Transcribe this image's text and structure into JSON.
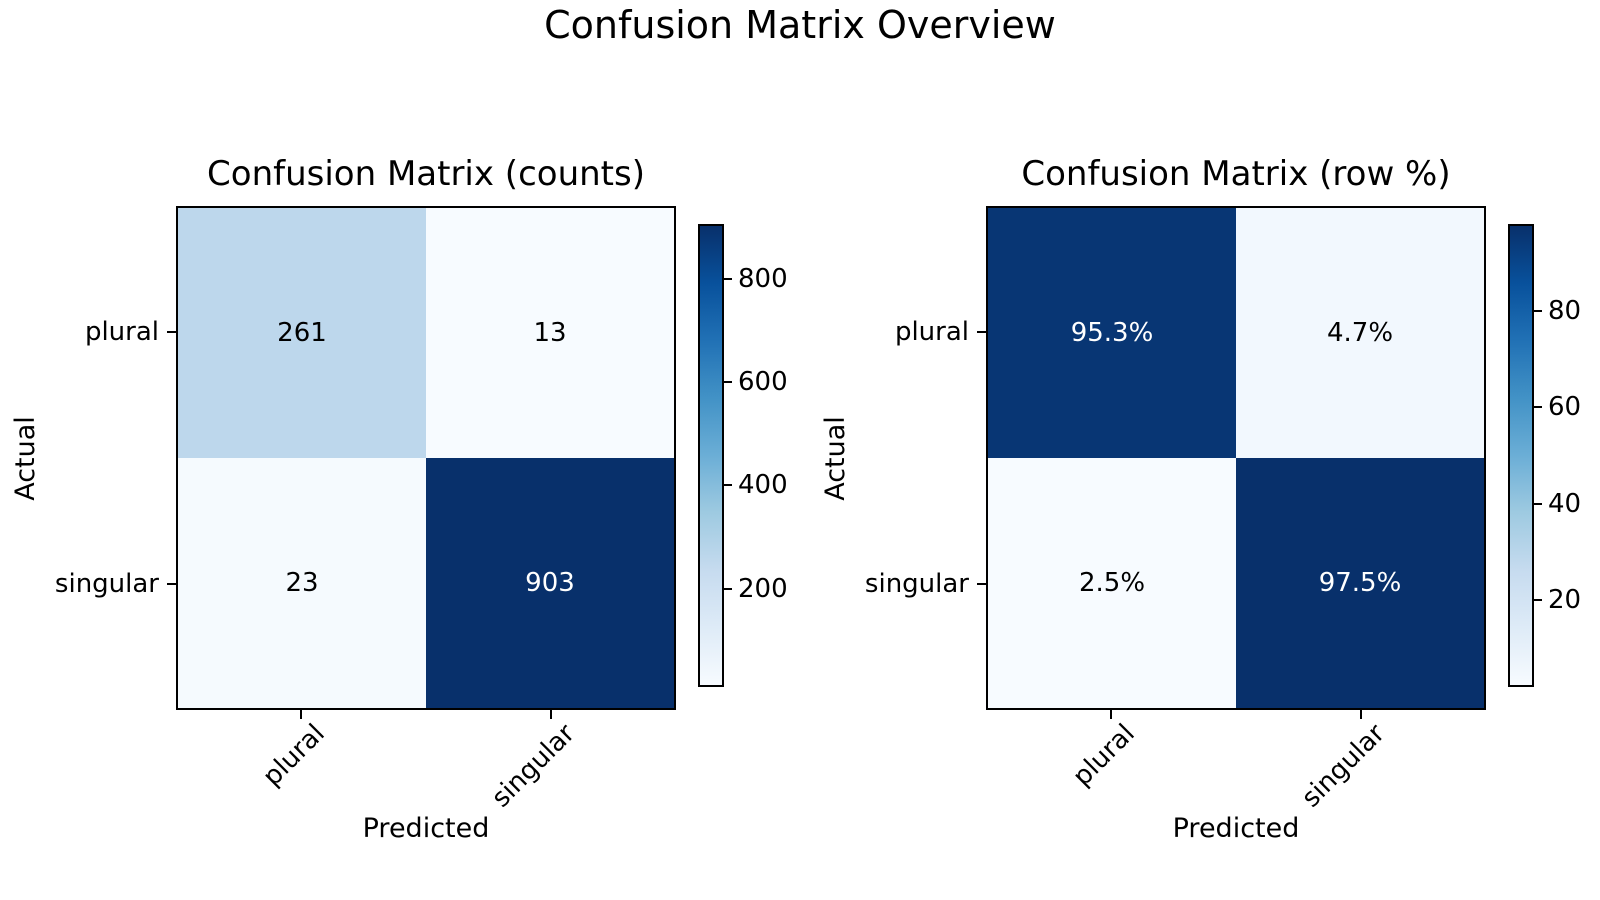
{
  "figure": {
    "suptitle": "Confusion Matrix Overview",
    "background_color": "#ffffff",
    "text_color": "#000000"
  },
  "chart_data": [
    {
      "type": "heatmap",
      "title": "Confusion Matrix (counts)",
      "xlabel": "Predicted",
      "ylabel": "Actual",
      "x_tick_labels": [
        "plural",
        "singular"
      ],
      "y_tick_labels": [
        "plural",
        "singular"
      ],
      "values": [
        [
          261,
          13
        ],
        [
          23,
          903
        ]
      ],
      "cell_labels": [
        [
          "261",
          "13"
        ],
        [
          "23",
          "903"
        ]
      ],
      "vmin": 13,
      "vmax": 903,
      "colormap": "Blues",
      "colorbar_ticks": [
        {
          "value": 200,
          "label": "200"
        },
        {
          "value": 400,
          "label": "400"
        },
        {
          "value": 600,
          "label": "600"
        },
        {
          "value": 800,
          "label": "800"
        }
      ]
    },
    {
      "type": "heatmap",
      "title": "Confusion Matrix (row %)",
      "xlabel": "Predicted",
      "ylabel": "Actual",
      "x_tick_labels": [
        "plural",
        "singular"
      ],
      "y_tick_labels": [
        "plural",
        "singular"
      ],
      "values": [
        [
          95.3,
          4.7
        ],
        [
          2.5,
          97.5
        ]
      ],
      "cell_labels": [
        [
          "95.3%",
          "4.7%"
        ],
        [
          "2.5%",
          "97.5%"
        ]
      ],
      "vmin": 2.5,
      "vmax": 97.5,
      "colormap": "Blues",
      "colorbar_ticks": [
        {
          "value": 20,
          "label": "20"
        },
        {
          "value": 40,
          "label": "40"
        },
        {
          "value": 60,
          "label": "60"
        },
        {
          "value": 80,
          "label": "80"
        }
      ]
    }
  ],
  "colors": {
    "colormap_blues_stops": [
      "#f7fbff",
      "#deebf7",
      "#c6dbef",
      "#9ecae1",
      "#6baed6",
      "#4292c6",
      "#2171b5",
      "#08519c",
      "#08306b"
    ],
    "cell_text_dark": "#000000",
    "cell_text_light": "#ffffff",
    "axis_color": "#000000"
  }
}
